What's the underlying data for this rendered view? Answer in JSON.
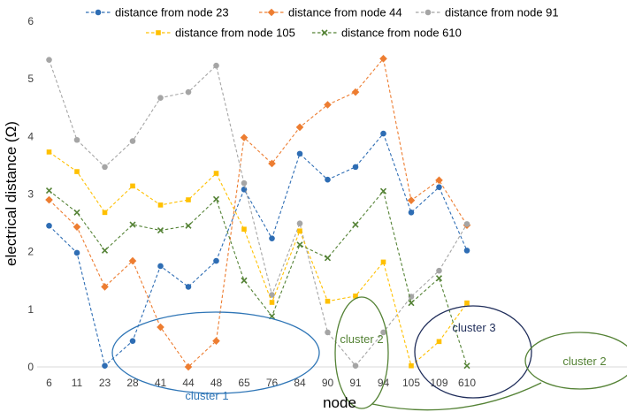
{
  "chart_data": {
    "type": "line",
    "xlabel": "node",
    "ylabel": "electrical distance (Ω)",
    "ylim": [
      0,
      6
    ],
    "yticks": [
      0,
      1,
      2,
      3,
      4,
      5,
      6
    ],
    "grid": false,
    "legend_position": "top",
    "categories": [
      "6",
      "11",
      "23",
      "28",
      "41",
      "44",
      "48",
      "65",
      "76",
      "84",
      "90",
      "91",
      "94",
      "105",
      "109",
      "610"
    ],
    "series": [
      {
        "name": "distance from node 23",
        "color": "#2e6db4",
        "marker": "circle",
        "values": [
          2.45,
          1.98,
          0.02,
          0.45,
          1.75,
          1.39,
          1.84,
          3.08,
          2.23,
          3.7,
          3.25,
          3.47,
          4.05,
          2.68,
          3.12,
          2.02
        ]
      },
      {
        "name": "distance from node 44",
        "color": "#ed7d31",
        "marker": "diamond",
        "values": [
          2.9,
          2.43,
          1.39,
          1.84,
          0.69,
          0.0,
          0.45,
          3.98,
          3.53,
          4.16,
          4.55,
          4.77,
          5.35,
          2.89,
          3.24,
          2.46
        ]
      },
      {
        "name": "distance from node 91",
        "color": "#a5a5a5",
        "marker": "circle",
        "values": [
          5.33,
          3.94,
          3.47,
          3.92,
          4.67,
          4.77,
          5.23,
          3.19,
          1.25,
          2.49,
          0.6,
          0.02,
          0.6,
          1.22,
          1.67,
          2.48
        ]
      },
      {
        "name": "distance from node 105",
        "color": "#ffc000",
        "marker": "square",
        "values": [
          3.73,
          3.39,
          2.68,
          3.14,
          2.81,
          2.9,
          3.36,
          2.39,
          1.12,
          2.36,
          1.14,
          1.23,
          1.82,
          0.02,
          0.44,
          1.11
        ]
      },
      {
        "name": "distance from node 610",
        "color": "#548235",
        "marker": "x",
        "values": [
          3.06,
          2.68,
          2.02,
          2.47,
          2.37,
          2.45,
          2.91,
          1.5,
          0.88,
          2.12,
          1.89,
          2.47,
          3.05,
          1.11,
          1.54,
          0.02
        ]
      }
    ],
    "annotations": [
      {
        "label": "cluster 1",
        "color": "#2e75b6",
        "members": [
          "23",
          "28",
          "41",
          "44",
          "48"
        ]
      },
      {
        "label": "cluster 2",
        "color": "#548235",
        "members": [
          "76"
        ]
      },
      {
        "label": "cluster 3",
        "color": "#1f2d5a",
        "members": [
          "90",
          "91",
          "94"
        ]
      },
      {
        "label": "cluster 2",
        "color": "#548235",
        "members": [
          "105",
          "109",
          "610"
        ]
      }
    ]
  }
}
